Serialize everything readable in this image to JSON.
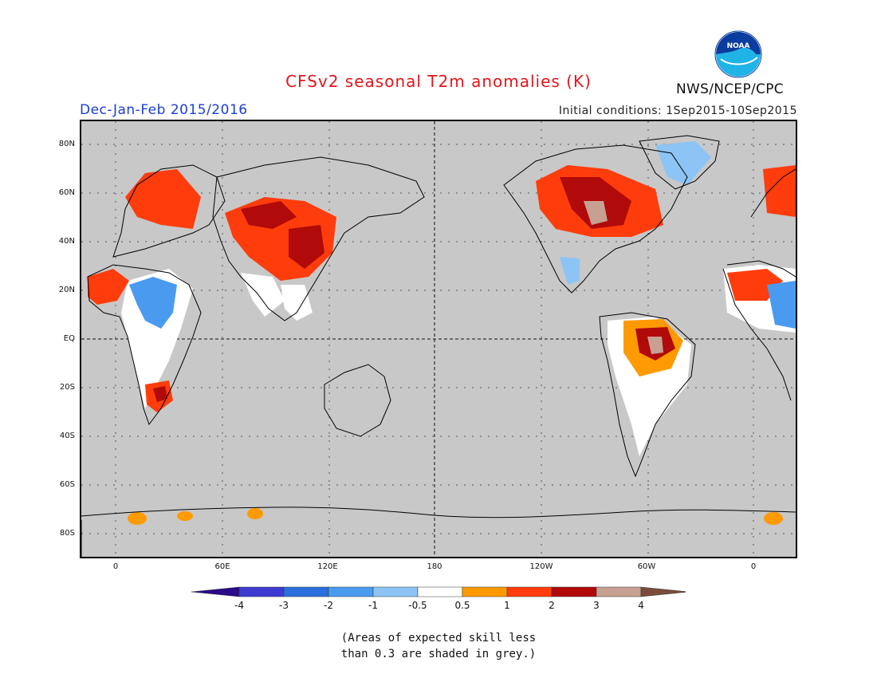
{
  "title": "CFSv2 seasonal T2m anomalies (K)",
  "period": "Dec-Jan-Feb 2015/2016",
  "initial_conditions": "Initial conditions: 1Sep2015-10Sep2015",
  "agency": "NWS/NCEP/CPC",
  "logo_text": "NOAA",
  "lat_labels": [
    "80N",
    "60N",
    "40N",
    "20N",
    "EQ",
    "20S",
    "40S",
    "60S",
    "80S"
  ],
  "lon_labels": [
    "0",
    "60E",
    "120E",
    "180",
    "120W",
    "60W",
    "0"
  ],
  "colorbar": {
    "labels": [
      "-4",
      "-3",
      "-2",
      "-1",
      "-0.5",
      "0.5",
      "1",
      "2",
      "3",
      "4"
    ],
    "colors": [
      "#2a0b8a",
      "#3d3bcf",
      "#2a6fdc",
      "#4a9af0",
      "#8cc4f5",
      "#ffffff",
      "#ff9a00",
      "#ff3c0c",
      "#b00a0a",
      "#c7a092",
      "#7a4d3a"
    ]
  },
  "note_line1": "(Areas of expected skill less",
  "note_line2": "than 0.3 are shaded in grey.)"
}
